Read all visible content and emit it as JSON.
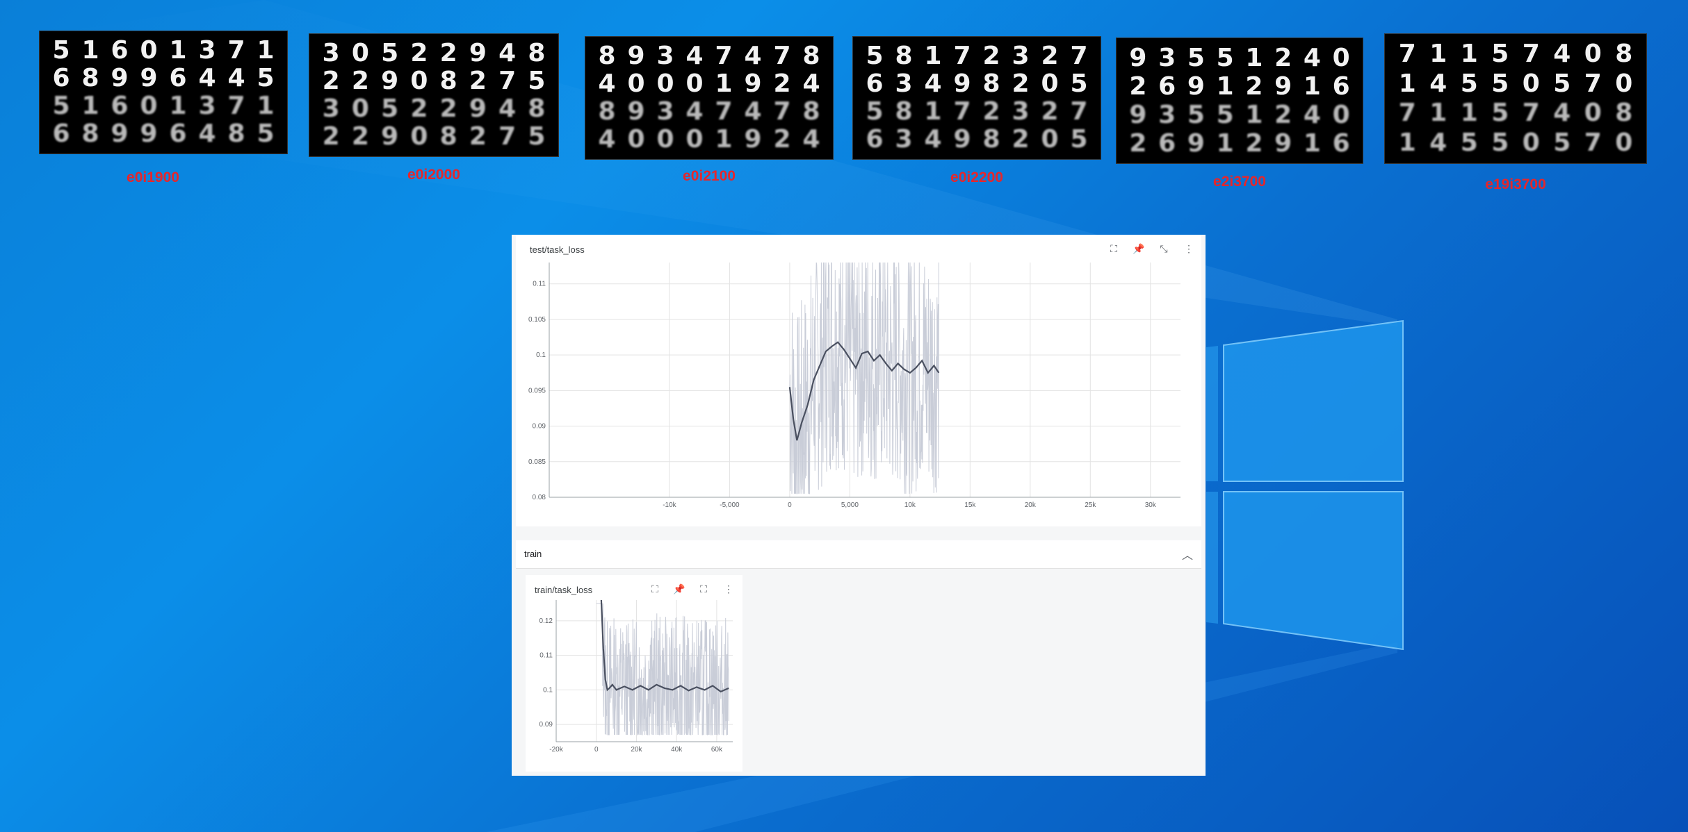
{
  "thumbnails": [
    {
      "caption": "e0i1900",
      "rows": [
        [
          "5",
          "1",
          "6",
          "0",
          "1",
          "3",
          "7",
          "1"
        ],
        [
          "6",
          "8",
          "9",
          "9",
          "6",
          "4",
          "4",
          "5"
        ],
        [
          "5",
          "1",
          "6",
          "0",
          "1",
          "3",
          "7",
          "1"
        ],
        [
          "6",
          "8",
          "9",
          "9",
          "6",
          "4",
          "8",
          "5"
        ]
      ]
    },
    {
      "caption": "e0i2000",
      "rows": [
        [
          "3",
          "0",
          "5",
          "2",
          "2",
          "9",
          "4",
          "8"
        ],
        [
          "2",
          "2",
          "9",
          "0",
          "8",
          "2",
          "7",
          "5"
        ],
        [
          "3",
          "0",
          "5",
          "2",
          "2",
          "9",
          "4",
          "8"
        ],
        [
          "2",
          "2",
          "9",
          "0",
          "8",
          "2",
          "7",
          "5"
        ]
      ]
    },
    {
      "caption": "e0i2100",
      "rows": [
        [
          "8",
          "9",
          "3",
          "4",
          "7",
          "4",
          "7",
          "8"
        ],
        [
          "4",
          "0",
          "0",
          "0",
          "1",
          "9",
          "2",
          "4"
        ],
        [
          "8",
          "9",
          "3",
          "4",
          "7",
          "4",
          "7",
          "8"
        ],
        [
          "4",
          "0",
          "0",
          "0",
          "1",
          "9",
          "2",
          "4"
        ]
      ]
    },
    {
      "caption": "e0i2200",
      "rows": [
        [
          "5",
          "8",
          "1",
          "7",
          "2",
          "3",
          "2",
          "7"
        ],
        [
          "6",
          "3",
          "4",
          "9",
          "8",
          "2",
          "0",
          "5"
        ],
        [
          "5",
          "8",
          "1",
          "7",
          "2",
          "3",
          "2",
          "7"
        ],
        [
          "6",
          "3",
          "4",
          "9",
          "8",
          "2",
          "0",
          "5"
        ]
      ]
    },
    {
      "caption": "e2i3700",
      "rows": [
        [
          "9",
          "3",
          "5",
          "5",
          "1",
          "2",
          "4",
          "0"
        ],
        [
          "2",
          "6",
          "9",
          "1",
          "2",
          "9",
          "1",
          "6"
        ],
        [
          "9",
          "3",
          "5",
          "5",
          "1",
          "2",
          "4",
          "0"
        ],
        [
          "2",
          "6",
          "9",
          "1",
          "2",
          "9",
          "1",
          "6"
        ]
      ]
    },
    {
      "caption": "e19i3700",
      "rows": [
        [
          "7",
          "1",
          "1",
          "5",
          "7",
          "4",
          "0",
          "8"
        ],
        [
          "1",
          "4",
          "5",
          "5",
          "0",
          "5",
          "7",
          "0"
        ],
        [
          "7",
          "1",
          "1",
          "5",
          "7",
          "4",
          "0",
          "8"
        ],
        [
          "1",
          "4",
          "5",
          "5",
          "0",
          "5",
          "7",
          "0"
        ]
      ]
    }
  ],
  "test_card": {
    "title": "test/task_loss"
  },
  "section": {
    "label": "train"
  },
  "train_card": {
    "title": "train/task_loss"
  },
  "icons": {
    "fit": "fit-domain-icon",
    "pin": "pin-icon",
    "fullscreen": "fullscreen-icon",
    "more": "more-vert-icon"
  },
  "colors": {
    "raw": "#c9cdd8",
    "smooth": "#4a5060",
    "caption": "#e6262b"
  },
  "chart_data": [
    {
      "type": "line",
      "title": "test/task_loss",
      "xlim": [
        -20000,
        32500
      ],
      "ylim": [
        0.08,
        0.113
      ],
      "xticks": [
        -10000,
        -5000,
        0,
        5000,
        10000,
        15000,
        20000,
        25000,
        30000
      ],
      "xtick_labels": [
        "-10k",
        "-5,000",
        "0",
        "5,000",
        "10k",
        "15k",
        "20k",
        "25k",
        "30k"
      ],
      "yticks": [
        0.08,
        0.085,
        0.09,
        0.095,
        0.1,
        0.105,
        0.11
      ],
      "ytick_labels": [
        "0.08",
        "0.085",
        "0.09",
        "0.095",
        "0.1",
        "0.105",
        "0.11"
      ],
      "grid": true,
      "series": [
        {
          "role": "smoothed",
          "x": [
            0,
            300,
            600,
            1000,
            1500,
            2000,
            2500,
            3000,
            3500,
            4000,
            4500,
            5000,
            5500,
            6000,
            6500,
            7000,
            7500,
            8000,
            8500,
            9000,
            9500,
            10000,
            10500,
            11000,
            11500,
            12000,
            12400
          ],
          "y": [
            0.0955,
            0.091,
            0.088,
            0.0905,
            0.093,
            0.0965,
            0.0985,
            0.1005,
            0.1012,
            0.1018,
            0.1008,
            0.0995,
            0.0982,
            0.1002,
            0.1005,
            0.0992,
            0.1,
            0.0988,
            0.0978,
            0.0988,
            0.098,
            0.0975,
            0.0982,
            0.0992,
            0.0975,
            0.0985,
            0.0975
          ]
        },
        {
          "role": "raw",
          "x": [
            0,
            12400
          ],
          "y": [
            0.0805,
            0.113
          ]
        }
      ]
    },
    {
      "type": "line",
      "title": "train/task_loss",
      "xlim": [
        -20000,
        68000
      ],
      "ylim": [
        0.085,
        0.126
      ],
      "xticks": [
        -20000,
        0,
        20000,
        40000,
        60000
      ],
      "xtick_labels": [
        "-20k",
        "0",
        "20k",
        "40k",
        "60k"
      ],
      "yticks": [
        0.09,
        0.1,
        0.11,
        0.12
      ],
      "ytick_labels": [
        "0.09",
        "0.1",
        "0.11",
        "0.12"
      ],
      "grid": true,
      "series": [
        {
          "role": "smoothed",
          "x": [
            2500,
            3500,
            4500,
            5500,
            6500,
            8000,
            10000,
            14000,
            18000,
            22000,
            26000,
            30000,
            34000,
            38000,
            42000,
            46000,
            50000,
            54000,
            58000,
            62000,
            66000
          ],
          "y": [
            0.126,
            0.112,
            0.103,
            0.1,
            0.1005,
            0.1015,
            0.1,
            0.101,
            0.1,
            0.1012,
            0.1,
            0.1015,
            0.1005,
            0.1,
            0.1012,
            0.0998,
            0.1008,
            0.1,
            0.1012,
            0.0995,
            0.1005
          ]
        },
        {
          "role": "raw",
          "x": [
            0,
            66000
          ],
          "y": [
            0.087,
            0.125
          ]
        }
      ]
    }
  ]
}
